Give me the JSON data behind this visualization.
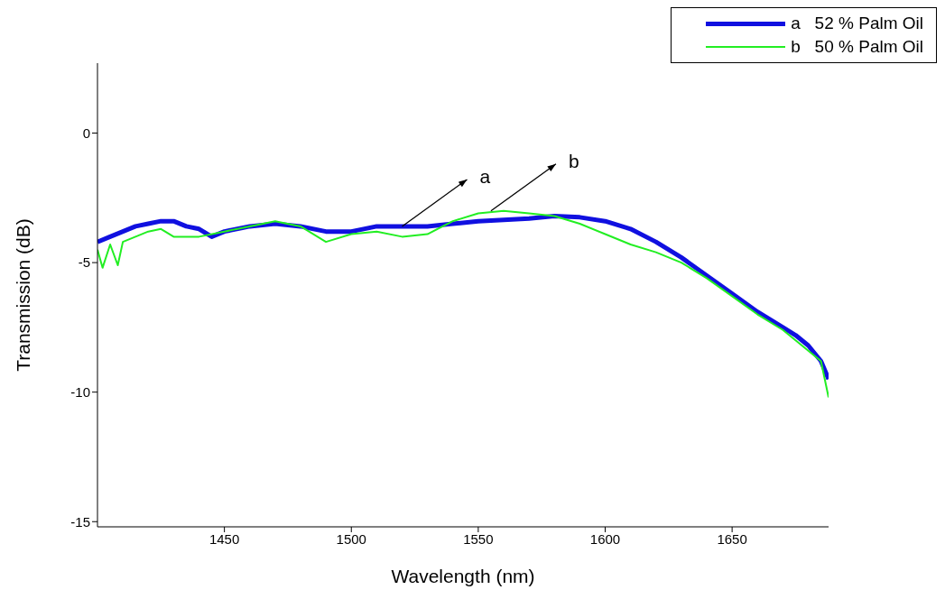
{
  "chart_data": {
    "type": "line",
    "xlabel": "Wavelength (nm)",
    "ylabel": "Transmission (dB)",
    "xlim": [
      1400,
      1688
    ],
    "xticks": [
      1450,
      1500,
      1550,
      1600,
      1650
    ],
    "ylim": [
      -15.2,
      2.7
    ],
    "yticks": [
      -15,
      -10,
      -5,
      0
    ],
    "legend": "top right",
    "marker": "none",
    "line_style": "solid",
    "series": [
      {
        "name": "a   52 % Palm Oil",
        "color": "#1010e0",
        "x": [
          1400,
          1405,
          1410,
          1415,
          1420,
          1425,
          1430,
          1435,
          1440,
          1445,
          1450,
          1460,
          1470,
          1480,
          1490,
          1500,
          1510,
          1520,
          1530,
          1540,
          1550,
          1560,
          1570,
          1580,
          1590,
          1600,
          1610,
          1620,
          1630,
          1640,
          1650,
          1660,
          1670,
          1675,
          1680,
          1685,
          1688
        ],
        "values": [
          -4.2,
          -4.0,
          -3.8,
          -3.6,
          -3.5,
          -3.4,
          -3.4,
          -3.6,
          -3.7,
          -4.0,
          -3.8,
          -3.6,
          -3.5,
          -3.6,
          -3.8,
          -3.8,
          -3.6,
          -3.6,
          -3.6,
          -3.5,
          -3.4,
          -3.35,
          -3.3,
          -3.2,
          -3.25,
          -3.4,
          -3.7,
          -4.2,
          -4.8,
          -5.5,
          -6.2,
          -6.9,
          -7.5,
          -7.8,
          -8.2,
          -8.8,
          -9.5
        ]
      },
      {
        "name": "b   50 % Palm Oil",
        "color": "#22ee22",
        "x": [
          1400,
          1402,
          1405,
          1408,
          1410,
          1415,
          1420,
          1425,
          1430,
          1440,
          1450,
          1460,
          1470,
          1480,
          1490,
          1500,
          1510,
          1520,
          1530,
          1540,
          1550,
          1560,
          1570,
          1580,
          1590,
          1600,
          1610,
          1620,
          1630,
          1640,
          1650,
          1660,
          1670,
          1680,
          1685,
          1688
        ],
        "values": [
          -4.5,
          -5.2,
          -4.3,
          -5.1,
          -4.2,
          -4.0,
          -3.8,
          -3.7,
          -4.0,
          -4.0,
          -3.8,
          -3.6,
          -3.4,
          -3.6,
          -4.2,
          -3.9,
          -3.8,
          -4.0,
          -3.9,
          -3.4,
          -3.1,
          -3.0,
          -3.1,
          -3.2,
          -3.5,
          -3.9,
          -4.3,
          -4.6,
          -5.0,
          -5.6,
          -6.3,
          -7.0,
          -7.6,
          -8.4,
          -8.8,
          -10.2
        ]
      }
    ],
    "annotations": [
      {
        "text": "a",
        "x": 1520,
        "y": -3.6
      },
      {
        "text": "b",
        "x": 1555,
        "y": -3.0
      }
    ]
  }
}
